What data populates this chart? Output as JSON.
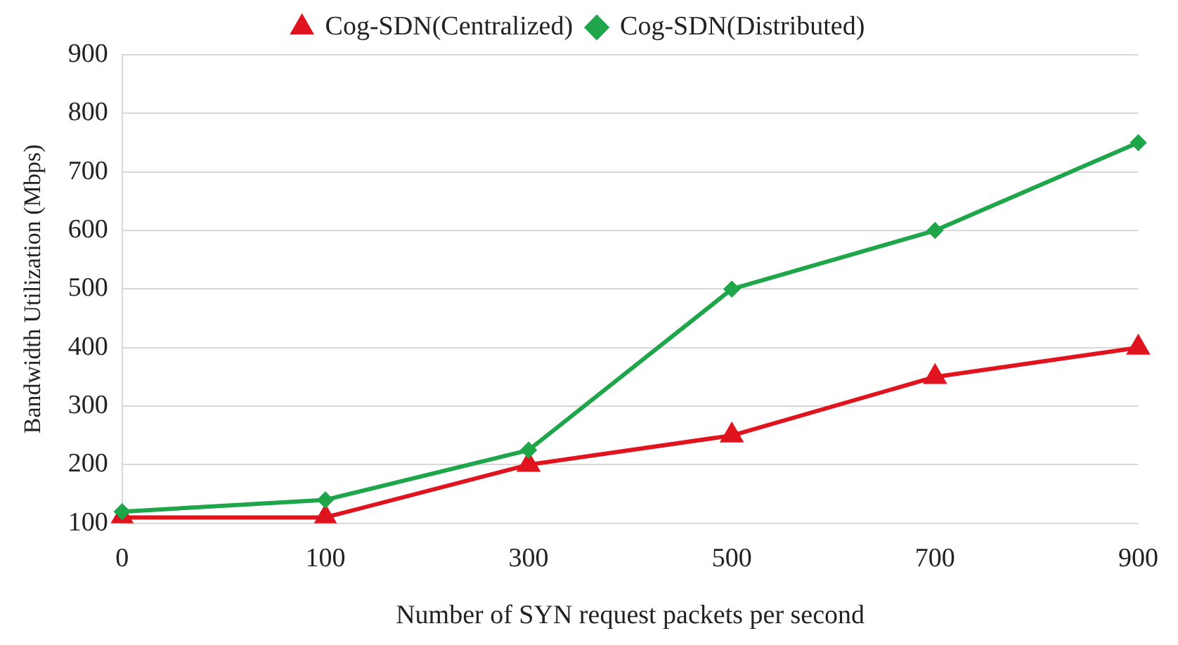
{
  "chart_data": {
    "type": "line",
    "xlabel": "Number of SYN request packets per second",
    "ylabel": "Bandwidth Utilization (Mbps)",
    "categories": [
      "0",
      "100",
      "300",
      "500",
      "700",
      "900"
    ],
    "series": [
      {
        "name": "Cog-SDN(Centralized)",
        "color": "#e0141e",
        "marker": "triangle",
        "values": [
          110,
          110,
          200,
          250,
          350,
          400
        ]
      },
      {
        "name": "Cog-SDN(Distributed)",
        "color": "#1fa64a",
        "marker": "diamond",
        "values": [
          120,
          140,
          225,
          500,
          600,
          750
        ]
      }
    ],
    "ylim": [
      100,
      900
    ],
    "yticks": [
      100,
      200,
      300,
      400,
      500,
      600,
      700,
      800,
      900
    ],
    "grid": "y",
    "legend": "top"
  }
}
